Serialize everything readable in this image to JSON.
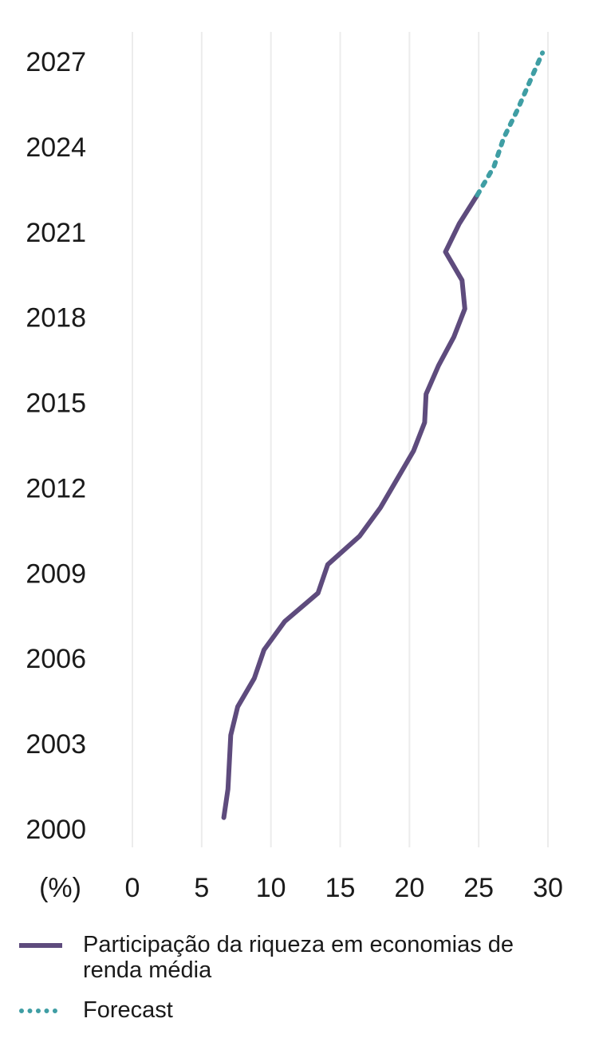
{
  "chart_data": {
    "type": "line",
    "title": "",
    "xlabel": "",
    "ylabel": "",
    "x_unit_label": "(%)",
    "orientation": "horizontal-values-vertical-years",
    "xlim": [
      0,
      30
    ],
    "x_ticks": [
      "0",
      "5",
      "10",
      "15",
      "20",
      "25",
      "30"
    ],
    "y_ticks": [
      "2000",
      "2003",
      "2006",
      "2009",
      "2012",
      "2015",
      "2018",
      "2021",
      "2024",
      "2027"
    ],
    "ylim": [
      2000,
      2027.5
    ],
    "grid": "vertical",
    "legend_position": "bottom",
    "series": [
      {
        "name": "Participação da riqueza em economias de renda média",
        "style": "solid",
        "color": "#5e4b7d",
        "points": [
          {
            "year": 2000.4,
            "value": 6.6
          },
          {
            "year": 2001.4,
            "value": 6.9
          },
          {
            "year": 2003.3,
            "value": 7.1
          },
          {
            "year": 2004.3,
            "value": 7.6
          },
          {
            "year": 2005.3,
            "value": 8.8
          },
          {
            "year": 2006.3,
            "value": 9.5
          },
          {
            "year": 2007.3,
            "value": 11.0
          },
          {
            "year": 2008.3,
            "value": 13.4
          },
          {
            "year": 2009.3,
            "value": 14.1
          },
          {
            "year": 2010.3,
            "value": 16.4
          },
          {
            "year": 2011.3,
            "value": 17.9
          },
          {
            "year": 2012.3,
            "value": 19.1
          },
          {
            "year": 2013.3,
            "value": 20.3
          },
          {
            "year": 2014.3,
            "value": 21.1
          },
          {
            "year": 2015.3,
            "value": 21.2
          },
          {
            "year": 2016.3,
            "value": 22.1
          },
          {
            "year": 2017.3,
            "value": 23.2
          },
          {
            "year": 2018.3,
            "value": 24.0
          },
          {
            "year": 2019.3,
            "value": 23.8
          },
          {
            "year": 2020.3,
            "value": 22.6
          },
          {
            "year": 2021.3,
            "value": 23.6
          },
          {
            "year": 2022.3,
            "value": 24.9
          }
        ]
      },
      {
        "name": "Forecast",
        "style": "dotted",
        "color": "#3f9ea4",
        "points": [
          {
            "year": 2022.3,
            "value": 24.9
          },
          {
            "year": 2023.3,
            "value": 26.1
          },
          {
            "year": 2024.3,
            "value": 26.8
          },
          {
            "year": 2025.3,
            "value": 27.8
          },
          {
            "year": 2026.3,
            "value": 28.7
          },
          {
            "year": 2027.3,
            "value": 29.6
          }
        ]
      }
    ]
  }
}
